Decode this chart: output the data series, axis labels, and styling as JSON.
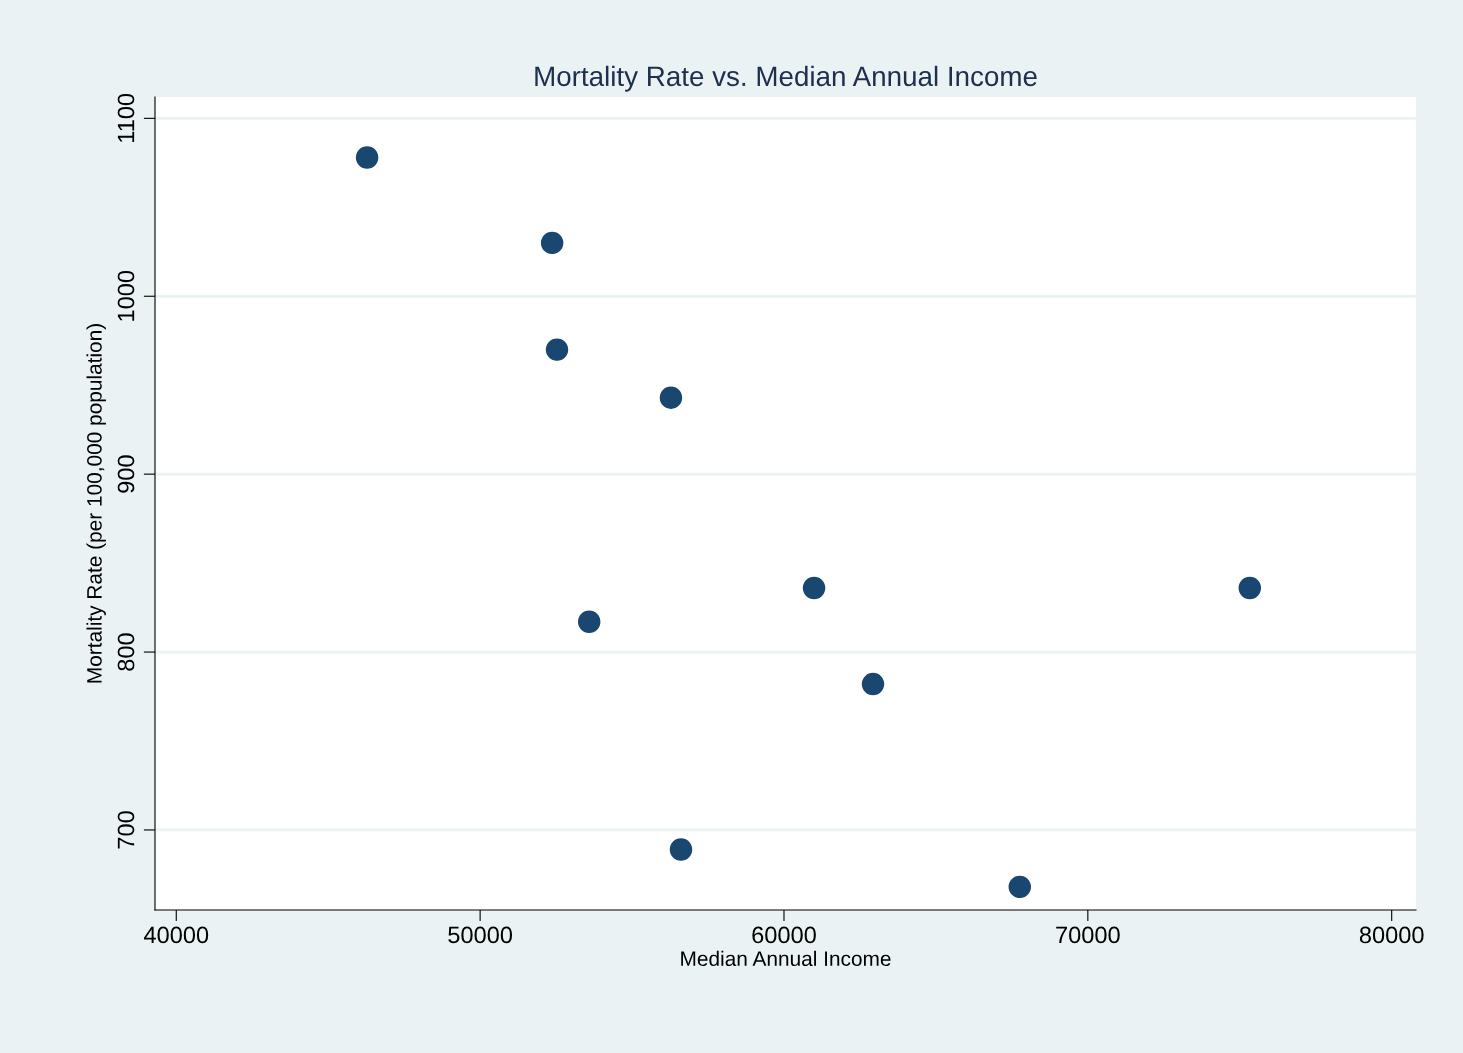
{
  "chart_data": {
    "type": "scatter",
    "title": "Mortality Rate vs. Median Annual Income",
    "xlabel": "Median Annual Income",
    "ylabel": "Mortality Rate (per 100,000 population)",
    "x": [
      46280,
      52370,
      52530,
      56280,
      53590,
      60990,
      75330,
      62930,
      56610,
      67760
    ],
    "values": [
      1078,
      1030,
      970,
      943,
      817,
      836,
      836,
      782,
      689,
      668
    ],
    "color": "#1a476f",
    "marker": "circle",
    "grid": "y",
    "legend": false,
    "xlim": [
      39300,
      80800
    ],
    "ylim": [
      655,
      1112
    ],
    "xticks": [
      40000,
      50000,
      60000,
      70000,
      80000
    ],
    "yticks": [
      700,
      800,
      900,
      1000,
      1100
    ]
  }
}
